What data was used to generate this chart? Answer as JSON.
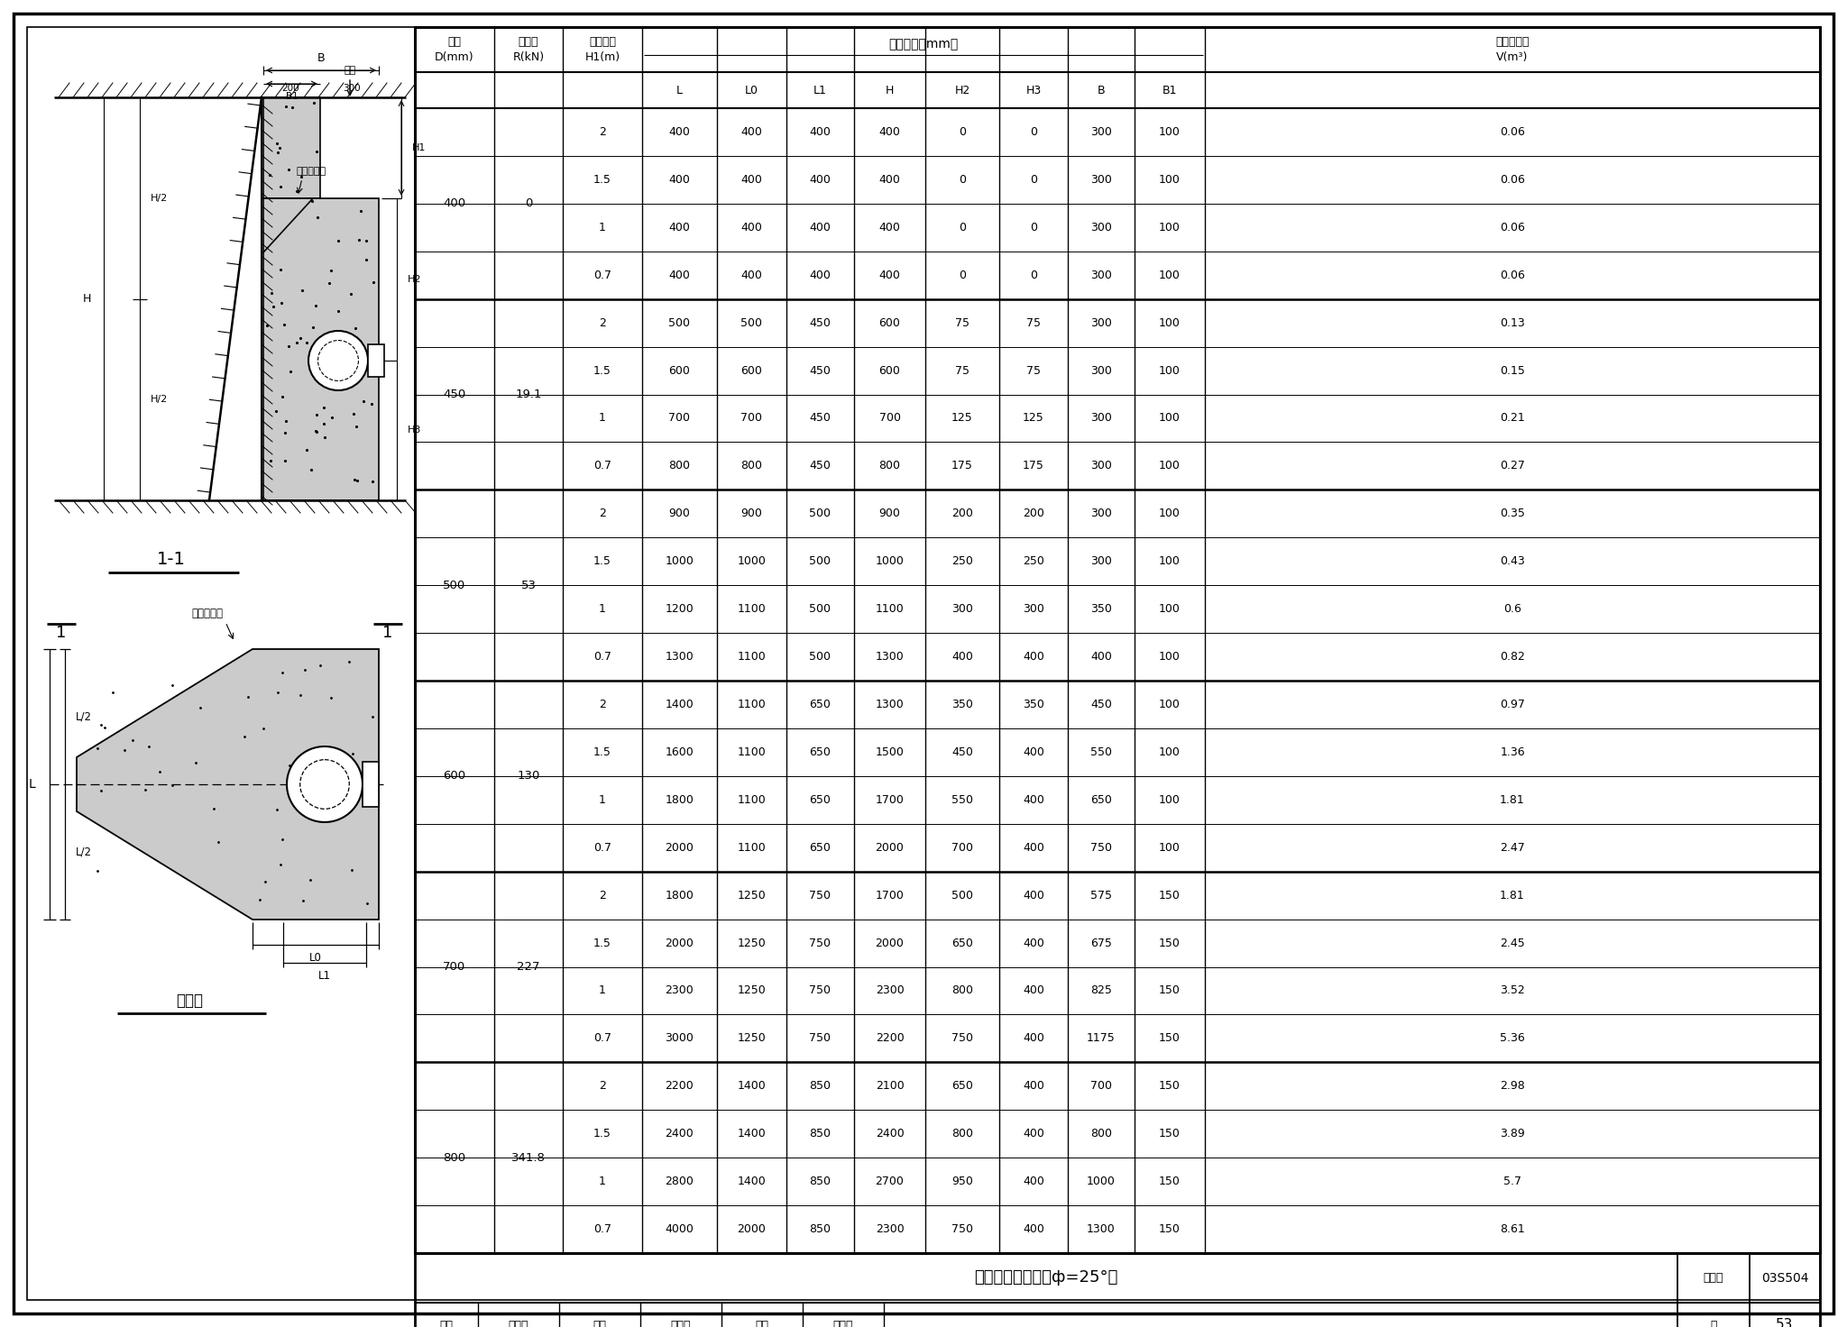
{
  "title": "水平管墩支墩图(φ=25°)",
  "figure_number": "03S504",
  "page": "53",
  "table_data": [
    [
      "400",
      "0",
      "2",
      "400",
      "400",
      "400",
      "400",
      "0",
      "0",
      "300",
      "100",
      "0.06"
    ],
    [
      "400",
      "0",
      "1.5",
      "400",
      "400",
      "400",
      "400",
      "0",
      "0",
      "300",
      "100",
      "0.06"
    ],
    [
      "400",
      "0",
      "1",
      "400",
      "400",
      "400",
      "400",
      "0",
      "0",
      "300",
      "100",
      "0.06"
    ],
    [
      "400",
      "0",
      "0.7",
      "400",
      "400",
      "400",
      "400",
      "0",
      "0",
      "300",
      "100",
      "0.06"
    ],
    [
      "450",
      "19.1",
      "2",
      "500",
      "500",
      "450",
      "600",
      "75",
      "75",
      "300",
      "100",
      "0.13"
    ],
    [
      "450",
      "19.1",
      "1.5",
      "600",
      "600",
      "450",
      "600",
      "75",
      "75",
      "300",
      "100",
      "0.15"
    ],
    [
      "450",
      "19.1",
      "1",
      "700",
      "700",
      "450",
      "700",
      "125",
      "125",
      "300",
      "100",
      "0.21"
    ],
    [
      "450",
      "19.1",
      "0.7",
      "800",
      "800",
      "450",
      "800",
      "175",
      "175",
      "300",
      "100",
      "0.27"
    ],
    [
      "500",
      "53",
      "2",
      "900",
      "900",
      "500",
      "900",
      "200",
      "200",
      "300",
      "100",
      "0.35"
    ],
    [
      "500",
      "53",
      "1.5",
      "1000",
      "1000",
      "500",
      "1000",
      "250",
      "250",
      "300",
      "100",
      "0.43"
    ],
    [
      "500",
      "53",
      "1",
      "1200",
      "1100",
      "500",
      "1100",
      "300",
      "300",
      "350",
      "100",
      "0.6"
    ],
    [
      "500",
      "53",
      "0.7",
      "1300",
      "1100",
      "500",
      "1300",
      "400",
      "400",
      "400",
      "100",
      "0.82"
    ],
    [
      "600",
      "130",
      "2",
      "1400",
      "1100",
      "650",
      "1300",
      "350",
      "350",
      "450",
      "100",
      "0.97"
    ],
    [
      "600",
      "130",
      "1.5",
      "1600",
      "1100",
      "650",
      "1500",
      "450",
      "400",
      "550",
      "100",
      "1.36"
    ],
    [
      "600",
      "130",
      "1",
      "1800",
      "1100",
      "650",
      "1700",
      "550",
      "400",
      "650",
      "100",
      "1.81"
    ],
    [
      "600",
      "130",
      "0.7",
      "2000",
      "1100",
      "650",
      "2000",
      "700",
      "400",
      "750",
      "100",
      "2.47"
    ],
    [
      "700",
      "227",
      "2",
      "1800",
      "1250",
      "750",
      "1700",
      "500",
      "400",
      "575",
      "150",
      "1.81"
    ],
    [
      "700",
      "227",
      "1.5",
      "2000",
      "1250",
      "750",
      "2000",
      "650",
      "400",
      "675",
      "150",
      "2.45"
    ],
    [
      "700",
      "227",
      "1",
      "2300",
      "1250",
      "750",
      "2300",
      "800",
      "400",
      "825",
      "150",
      "3.52"
    ],
    [
      "700",
      "227",
      "0.7",
      "3000",
      "1250",
      "750",
      "2200",
      "750",
      "400",
      "1175",
      "150",
      "5.36"
    ],
    [
      "800",
      "341.8",
      "2",
      "2200",
      "1400",
      "850",
      "2100",
      "650",
      "400",
      "700",
      "150",
      "2.98"
    ],
    [
      "800",
      "341.8",
      "1.5",
      "2400",
      "1400",
      "850",
      "2400",
      "800",
      "400",
      "800",
      "150",
      "3.89"
    ],
    [
      "800",
      "341.8",
      "1",
      "2800",
      "1400",
      "850",
      "2700",
      "950",
      "400",
      "1000",
      "150",
      "5.7"
    ],
    [
      "800",
      "341.8",
      "0.7",
      "4000",
      "2000",
      "850",
      "2300",
      "750",
      "400",
      "1300",
      "150",
      "8.61"
    ]
  ],
  "row_groups": [
    [
      0,
      4,
      "400",
      "0"
    ],
    [
      4,
      8,
      "450",
      "19.1"
    ],
    [
      8,
      12,
      "500",
      "53"
    ],
    [
      12,
      16,
      "600",
      "130"
    ],
    [
      16,
      20,
      "700",
      "227"
    ],
    [
      20,
      24,
      "800",
      "341.8"
    ]
  ],
  "background_color": "#ffffff"
}
